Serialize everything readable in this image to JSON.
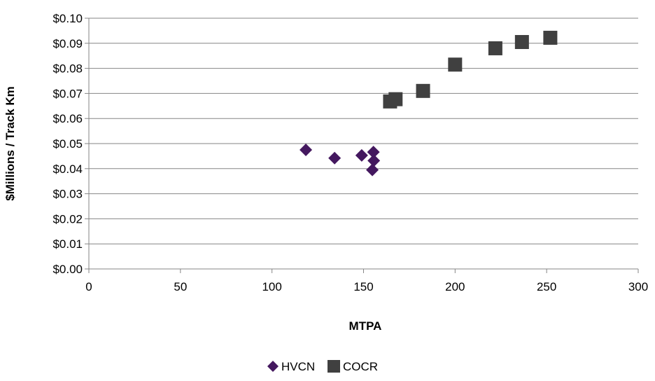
{
  "chart_data": {
    "type": "scatter",
    "title": "",
    "xlabel": "MTPA",
    "ylabel": "$Millions / Track Km",
    "xlim": [
      0,
      300
    ],
    "ylim": [
      0,
      0.1
    ],
    "x_ticks": [
      0,
      50,
      100,
      150,
      200,
      250,
      300
    ],
    "x_tick_labels": [
      "0",
      "50",
      "100",
      "150",
      "200",
      "250",
      "300"
    ],
    "y_ticks": [
      0,
      0.01,
      0.02,
      0.03,
      0.04,
      0.05,
      0.06,
      0.07,
      0.08,
      0.09,
      0.1
    ],
    "y_tick_labels": [
      "$0.00",
      "$0.01",
      "$0.02",
      "$0.03",
      "$0.04",
      "$0.05",
      "$0.06",
      "$0.07",
      "$0.08",
      "$0.09",
      "$0.10"
    ],
    "grid": "horizontal",
    "legend_position": "bottom",
    "series": [
      {
        "name": "HVCN",
        "marker": "diamond",
        "color": "#44185F",
        "points": [
          {
            "x": 118.5,
            "y": 0.0475
          },
          {
            "x": 134.2,
            "y": 0.0442
          },
          {
            "x": 149.0,
            "y": 0.0453
          },
          {
            "x": 155.4,
            "y": 0.0466
          },
          {
            "x": 155.6,
            "y": 0.0432
          },
          {
            "x": 154.8,
            "y": 0.0395
          }
        ]
      },
      {
        "name": "COCR",
        "marker": "square",
        "color": "#404040",
        "points": [
          {
            "x": 164.5,
            "y": 0.0668
          },
          {
            "x": 167.5,
            "y": 0.0677
          },
          {
            "x": 182.5,
            "y": 0.071
          },
          {
            "x": 200.0,
            "y": 0.0815
          },
          {
            "x": 222.0,
            "y": 0.088
          },
          {
            "x": 236.5,
            "y": 0.0905
          },
          {
            "x": 252.0,
            "y": 0.0922
          }
        ]
      }
    ]
  }
}
